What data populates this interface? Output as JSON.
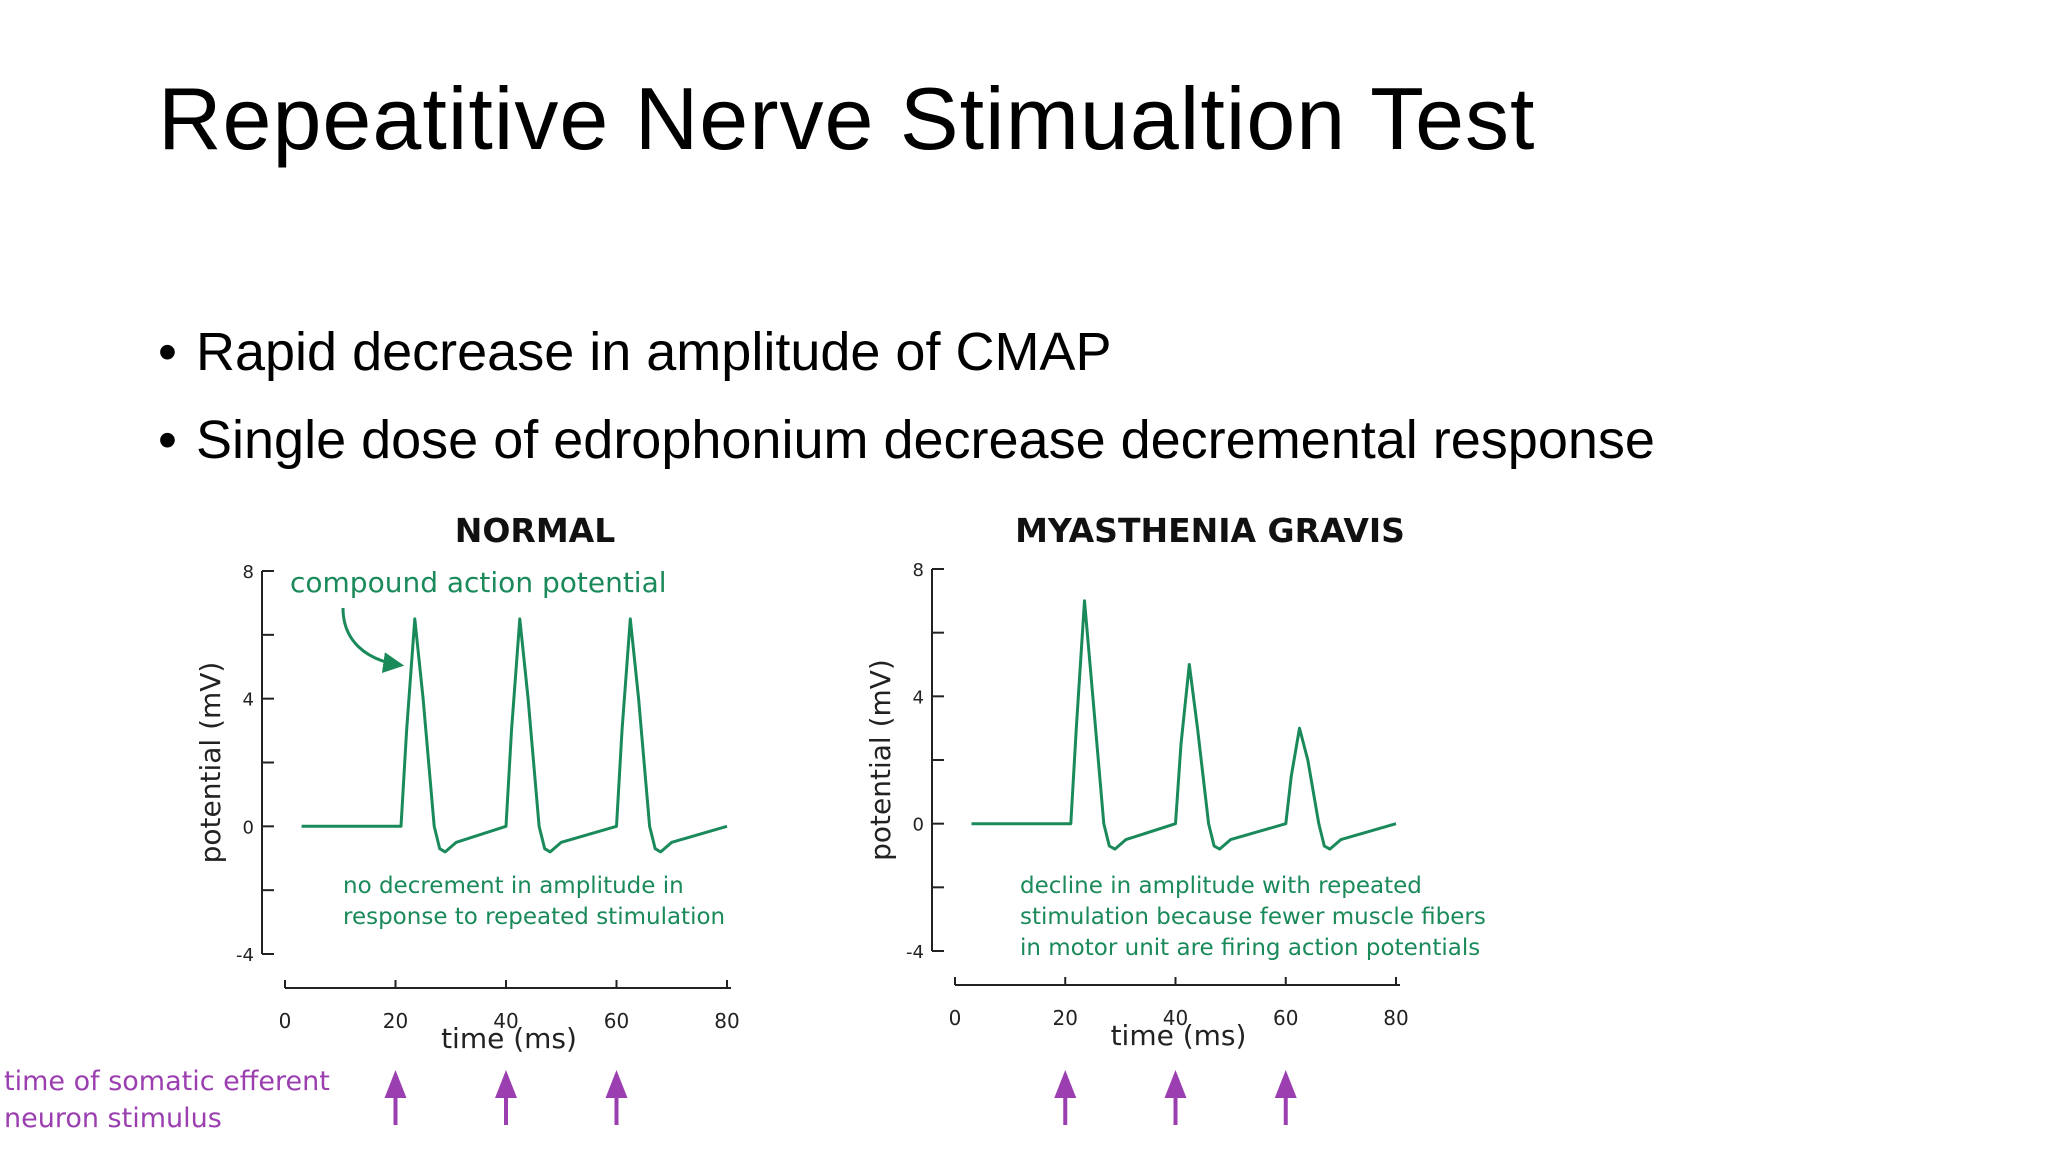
{
  "slide": {
    "title": "Repeatitive Nerve Stimualtion Test",
    "bullets": [
      "Rapid decrease in amplitude of CMAP",
      "Single dose of edrophonium decrease decremental response"
    ]
  },
  "colors": {
    "trace": "#1a8a5a",
    "annotation_text": "#1a8a5a",
    "stimulus_arrow": "#9b3fb0",
    "axis": "#222222"
  },
  "stimulus_label": [
    "time of somatic efferent",
    "neuron stimulus"
  ],
  "chart_data": [
    {
      "type": "line",
      "title": "NORMAL",
      "xlabel": "time (ms)",
      "ylabel": "potential (mV)",
      "xlim": [
        0,
        80
      ],
      "ylim": [
        -4,
        8
      ],
      "x_ticks": [
        0,
        20,
        40,
        60,
        80
      ],
      "y_ticks": [
        8,
        4,
        0,
        -4
      ],
      "annotation_top": "compound action potential",
      "annotation_bottom": [
        "no decrement in amplitude in",
        "response to repeated stimulation"
      ],
      "stimulus_times": [
        20,
        40,
        60
      ],
      "series": [
        {
          "x": [
            3,
            21,
            22,
            23.5,
            25,
            27,
            28,
            29,
            31,
            40,
            41,
            42.5,
            44,
            46,
            47,
            48,
            50,
            60,
            61,
            62.5,
            64,
            66,
            67,
            68,
            70,
            80
          ],
          "y": [
            0,
            0,
            3,
            6.5,
            4,
            0,
            -0.7,
            -0.8,
            -0.5,
            0,
            3,
            6.5,
            4,
            0,
            -0.7,
            -0.8,
            -0.5,
            0,
            3,
            6.5,
            4,
            0,
            -0.7,
            -0.8,
            -0.5,
            0
          ]
        }
      ]
    },
    {
      "type": "line",
      "title": "MYASTHENIA GRAVIS",
      "xlabel": "time (ms)",
      "ylabel": "potential (mV)",
      "xlim": [
        0,
        80
      ],
      "ylim": [
        -4,
        8
      ],
      "x_ticks": [
        0,
        20,
        40,
        60,
        80
      ],
      "y_ticks": [
        8,
        4,
        0,
        -4
      ],
      "annotation_bottom": [
        "decline in amplitude with repeated",
        "stimulation because fewer muscle fibers",
        "in motor unit are firing action potentials"
      ],
      "stimulus_times": [
        20,
        40,
        60
      ],
      "series": [
        {
          "x": [
            3,
            21,
            22,
            23.5,
            25,
            27,
            28,
            29,
            31,
            40,
            41,
            42.5,
            44,
            46,
            47,
            48,
            50,
            60,
            61,
            62.5,
            64,
            66,
            67,
            68,
            70,
            80
          ],
          "y": [
            0,
            0,
            3,
            7,
            4,
            0,
            -0.7,
            -0.8,
            -0.5,
            0,
            2.5,
            5,
            3,
            0,
            -0.7,
            -0.8,
            -0.5,
            0,
            1.5,
            3,
            2,
            0,
            -0.7,
            -0.8,
            -0.5,
            0
          ]
        }
      ]
    }
  ]
}
